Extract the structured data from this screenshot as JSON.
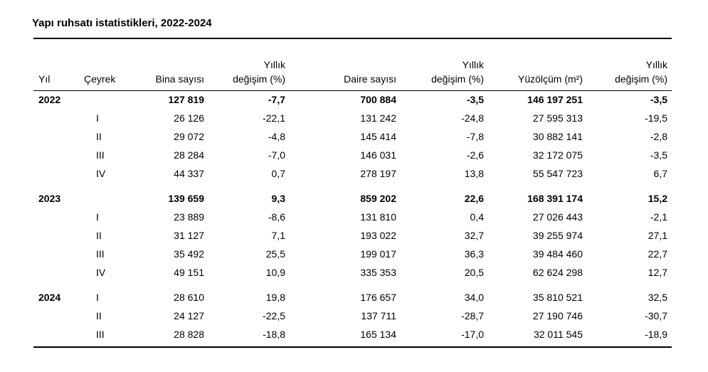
{
  "title": "Yapı ruhsatı istatistikleri, 2022-2024",
  "headers": {
    "yil": "Yıl",
    "ceyrek": "Çeyrek",
    "bina": "Bina sayısı",
    "bina_change_1": "Yıllık",
    "bina_change_2": "değişim (%)",
    "daire": "Daire sayısı",
    "daire_change_1": "Yıllık",
    "daire_change_2": "değişim (%)",
    "alan": "Yüzölçüm (m²)",
    "alan_change_1": "Yıllık",
    "alan_change_2": "değişim (%)"
  },
  "rows": [
    {
      "yil": "2022",
      "q": "",
      "bina": "127 819",
      "bina_ch": "-7,7",
      "daire": "700 884",
      "daire_ch": "-3,5",
      "alan": "146 197 251",
      "alan_ch": "-3,5"
    },
    {
      "yil": "",
      "q": "I",
      "bina": "26 126",
      "bina_ch": "-22,1",
      "daire": "131 242",
      "daire_ch": "-24,8",
      "alan": "27 595 313",
      "alan_ch": "-19,5"
    },
    {
      "yil": "",
      "q": "II",
      "bina": "29 072",
      "bina_ch": "-4,8",
      "daire": "145 414",
      "daire_ch": "-7,8",
      "alan": "30 882 141",
      "alan_ch": "-2,8"
    },
    {
      "yil": "",
      "q": "III",
      "bina": "28 284",
      "bina_ch": "-7,0",
      "daire": "146 031",
      "daire_ch": "-2,6",
      "alan": "32 172 075",
      "alan_ch": "-3,5"
    },
    {
      "yil": "",
      "q": "IV",
      "bina": "44 337",
      "bina_ch": "0,7",
      "daire": "278 197",
      "daire_ch": "13,8",
      "alan": "55 547 723",
      "alan_ch": "6,7"
    },
    {
      "yil": "2023",
      "q": "",
      "bina": "139 659",
      "bina_ch": "9,3",
      "daire": "859 202",
      "daire_ch": "22,6",
      "alan": "168 391 174",
      "alan_ch": "15,2"
    },
    {
      "yil": "",
      "q": "I",
      "bina": "23 889",
      "bina_ch": "-8,6",
      "daire": "131 810",
      "daire_ch": "0,4",
      "alan": "27 026 443",
      "alan_ch": "-2,1"
    },
    {
      "yil": "",
      "q": "II",
      "bina": "31 127",
      "bina_ch": "7,1",
      "daire": "193 022",
      "daire_ch": "32,7",
      "alan": "39 255 974",
      "alan_ch": "27,1"
    },
    {
      "yil": "",
      "q": "III",
      "bina": "35 492",
      "bina_ch": "25,5",
      "daire": "199 017",
      "daire_ch": "36,3",
      "alan": "39 484 460",
      "alan_ch": "22,7"
    },
    {
      "yil": "",
      "q": "IV",
      "bina": "49 151",
      "bina_ch": "10,9",
      "daire": "335 353",
      "daire_ch": "20,5",
      "alan": "62 624 298",
      "alan_ch": "12,7"
    },
    {
      "yil": "2024",
      "q": "I",
      "bina": "28 610",
      "bina_ch": "19,8",
      "daire": "176 657",
      "daire_ch": "34,0",
      "alan": "35 810 521",
      "alan_ch": "32,5"
    },
    {
      "yil": "",
      "q": "II",
      "bina": "24 127",
      "bina_ch": "-22,5",
      "daire": "137 711",
      "daire_ch": "-28,7",
      "alan": "27 190 746",
      "alan_ch": "-30,7"
    },
    {
      "yil": "",
      "q": "III",
      "bina": "28 828",
      "bina_ch": "-18,8",
      "daire": "165 134",
      "daire_ch": "-17,0",
      "alan": "32 011 545",
      "alan_ch": "-18,9"
    }
  ]
}
